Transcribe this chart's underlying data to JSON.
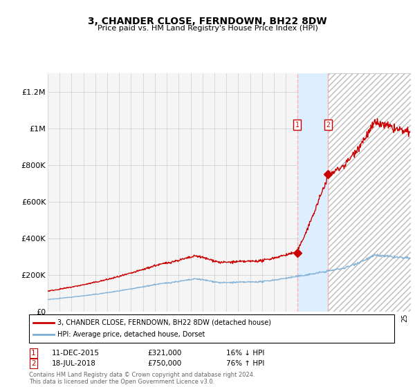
{
  "title": "3, CHANDER CLOSE, FERNDOWN, BH22 8DW",
  "subtitle": "Price paid vs. HM Land Registry's House Price Index (HPI)",
  "ylabel_ticks": [
    "£0",
    "£200K",
    "£400K",
    "£600K",
    "£800K",
    "£1M",
    "£1.2M"
  ],
  "ylim": [
    0,
    1300000
  ],
  "yticks": [
    0,
    200000,
    400000,
    600000,
    800000,
    1000000,
    1200000
  ],
  "hpi_color": "#7aadd4",
  "price_color": "#cc0000",
  "transaction1_year": 2015.95,
  "transaction1_price": 321000,
  "transaction1_date": "11-DEC-2015",
  "transaction1_pct": "16% ↓ HPI",
  "transaction2_year": 2018.54,
  "transaction2_price": 750000,
  "transaction2_date": "18-JUL-2018",
  "transaction2_pct": "76% ↑ HPI",
  "legend_line1": "3, CHANDER CLOSE, FERNDOWN, BH22 8DW (detached house)",
  "legend_line2": "HPI: Average price, detached house, Dorset",
  "footer": "Contains HM Land Registry data © Crown copyright and database right 2024.\nThis data is licensed under the Open Government Licence v3.0.",
  "bg_color": "#ffffff",
  "plot_bg_color": "#f5f5f5",
  "grid_color": "#cccccc",
  "shaded_color": "#ddeeff",
  "xlim_start": 1995.0,
  "xlim_end": 2025.5
}
